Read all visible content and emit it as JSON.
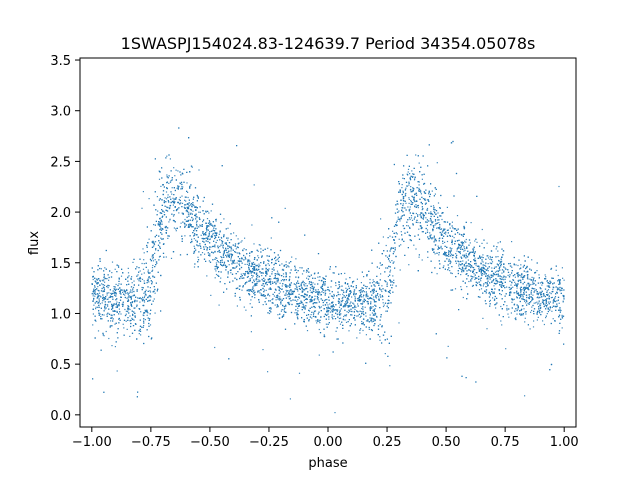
{
  "chart_data": {
    "type": "scatter",
    "title": "1SWASPJ154024.83-124639.7 Period 34354.05078s",
    "xlabel": "phase",
    "ylabel": "flux",
    "xlim": [
      -1.05,
      1.05
    ],
    "ylim": [
      -0.12,
      3.52
    ],
    "x_ticks": [
      -1.0,
      -0.75,
      -0.5,
      -0.25,
      0.0,
      0.25,
      0.5,
      0.75,
      1.0
    ],
    "x_tick_labels": [
      "−1.00",
      "−0.75",
      "−0.50",
      "−0.25",
      "0.00",
      "0.25",
      "0.50",
      "0.75",
      "1.00"
    ],
    "y_ticks": [
      0.0,
      0.5,
      1.0,
      1.5,
      2.0,
      2.5,
      3.0,
      3.5
    ],
    "y_tick_labels": [
      "0.0",
      "0.5",
      "1.0",
      "1.5",
      "2.0",
      "2.5",
      "3.0",
      "3.5"
    ],
    "grid": false,
    "marker_color": "#1f77b4",
    "series": [
      {
        "x": [
          -1.0,
          -0.95,
          -0.9,
          -0.85,
          -0.8,
          -0.75,
          -0.7,
          -0.65,
          -0.6,
          -0.55,
          -0.5,
          -0.45,
          -0.4,
          -0.35,
          -0.3,
          -0.25,
          -0.2,
          -0.15,
          -0.1,
          -0.05,
          0.0,
          0.05,
          0.1,
          0.15,
          0.2,
          0.25,
          0.3,
          0.35,
          0.4,
          0.45,
          0.5,
          0.55,
          0.6,
          0.65,
          0.7,
          0.75,
          0.8,
          0.85,
          0.9,
          0.95,
          1.0
        ],
        "y": [
          1.18,
          1.15,
          1.13,
          1.12,
          1.1,
          1.3,
          2.0,
          2.15,
          2.05,
          1.85,
          1.7,
          1.58,
          1.5,
          1.42,
          1.35,
          1.3,
          1.25,
          1.2,
          1.18,
          1.15,
          1.12,
          1.1,
          1.08,
          1.1,
          1.1,
          1.25,
          2.0,
          2.15,
          2.05,
          1.85,
          1.7,
          1.58,
          1.5,
          1.42,
          1.35,
          1.3,
          1.25,
          1.2,
          1.18,
          1.15,
          1.15
        ],
        "spread": [
          0.16,
          0.16,
          0.16,
          0.16,
          0.18,
          0.3,
          0.22,
          0.2,
          0.2,
          0.18,
          0.17,
          0.16,
          0.16,
          0.15,
          0.15,
          0.15,
          0.15,
          0.14,
          0.14,
          0.14,
          0.14,
          0.14,
          0.14,
          0.14,
          0.15,
          0.3,
          0.22,
          0.2,
          0.2,
          0.18,
          0.17,
          0.16,
          0.16,
          0.15,
          0.15,
          0.15,
          0.15,
          0.14,
          0.14,
          0.14,
          0.14
        ]
      }
    ]
  }
}
